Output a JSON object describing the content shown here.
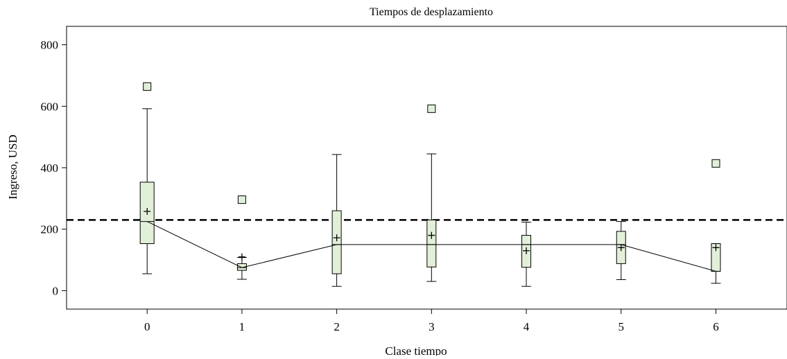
{
  "chart_data": {
    "type": "boxplot",
    "title": "Tiempos de desplazamiento",
    "xlabel": "Clase tiempo",
    "ylabel": "Ingreso, USD",
    "categories": [
      "0",
      "1",
      "2",
      "3",
      "4",
      "5",
      "6"
    ],
    "yticks": [
      "0",
      "200",
      "400",
      "600",
      "800"
    ],
    "ylim": [
      -60,
      860
    ],
    "xlim": [
      -0.85,
      6.75
    ],
    "grid": false,
    "box_color": "#e2efd9",
    "line_color": "#000000",
    "reference_line": {
      "value": 230,
      "style": "dashed"
    },
    "boxes": [
      {
        "category": "0",
        "whisker_low": 55,
        "q1": 153,
        "median": 225,
        "q3": 353,
        "whisker_high": 592,
        "mean": 258,
        "outliers": [
          664
        ]
      },
      {
        "category": "1",
        "whisker_low": 37,
        "q1": 66,
        "median": 75,
        "q3": 88,
        "whisker_high": 108,
        "mean": 110,
        "outliers": [
          296
        ]
      },
      {
        "category": "2",
        "whisker_low": 14,
        "q1": 55,
        "median": 150,
        "q3": 260,
        "whisker_high": 443,
        "mean": 172,
        "outliers": []
      },
      {
        "category": "3",
        "whisker_low": 30,
        "q1": 77,
        "median": 150,
        "q3": 230,
        "whisker_high": 445,
        "mean": 180,
        "outliers": [
          592
        ]
      },
      {
        "category": "4",
        "whisker_low": 14,
        "q1": 76,
        "median": 150,
        "q3": 180,
        "whisker_high": 223,
        "mean": 130,
        "outliers": []
      },
      {
        "category": "5",
        "whisker_low": 36,
        "q1": 88,
        "median": 150,
        "q3": 193,
        "whisker_high": 225,
        "mean": 140,
        "outliers": []
      },
      {
        "category": "6",
        "whisker_low": 24,
        "q1": 63,
        "median": 63,
        "q3": 153,
        "whisker_high": 153,
        "mean": 140,
        "outliers": [
          414
        ]
      }
    ]
  }
}
